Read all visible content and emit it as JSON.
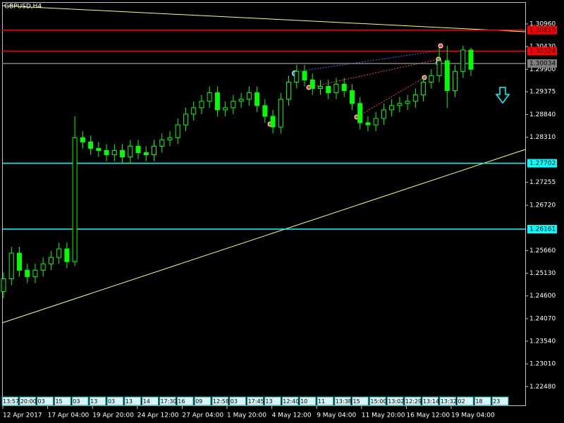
{
  "chart_data": {
    "type": "candlestick",
    "title": "GBPUSD,H4",
    "color": "#00ff00",
    "open": [
      1.247,
      1.25,
      1.256,
      1.252,
      1.2505,
      1.252,
      1.2535,
      1.255,
      1.257,
      1.254,
      1.283,
      1.282,
      1.2805,
      1.28,
      1.279,
      1.28,
      1.2785,
      1.281,
      1.2795,
      1.279,
      1.281,
      1.2825,
      1.283,
      1.286,
      1.2885,
      1.29,
      1.2915,
      1.2935,
      1.2895,
      1.29,
      1.2915,
      1.292,
      1.2935,
      1.2905,
      1.288,
      1.2855,
      1.292,
      1.296,
      1.2985,
      1.2965,
      1.2945,
      1.295,
      1.2935,
      1.2955,
      1.294,
      1.291,
      1.2865,
      1.286,
      1.2875,
      1.2895,
      1.2905,
      1.291,
      1.2915,
      1.293,
      1.296,
      1.2975,
      1.301,
      1.294,
      1.2985,
      1.3035
    ],
    "high": [
      1.2515,
      1.2575,
      1.2575,
      1.2535,
      1.2535,
      1.255,
      1.2565,
      1.2585,
      1.2585,
      1.288,
      1.2845,
      1.2835,
      1.282,
      1.2815,
      1.2815,
      1.2815,
      1.2825,
      1.2825,
      1.281,
      1.2825,
      1.284,
      1.2845,
      1.2875,
      1.29,
      1.2915,
      1.293,
      1.295,
      1.295,
      1.2915,
      1.293,
      1.2935,
      1.295,
      1.295,
      1.292,
      1.2895,
      1.2935,
      1.2975,
      1.3,
      1.3,
      1.298,
      1.2965,
      1.2965,
      1.297,
      1.297,
      1.2955,
      1.2925,
      1.288,
      1.289,
      1.291,
      1.292,
      1.2925,
      1.293,
      1.2945,
      1.2975,
      1.299,
      1.304,
      1.3045,
      1.3,
      1.3045,
      1.304
    ],
    "low": [
      1.2455,
      1.2485,
      1.2505,
      1.249,
      1.249,
      1.2505,
      1.252,
      1.2535,
      1.2525,
      1.253,
      1.2805,
      1.279,
      1.2785,
      1.2775,
      1.2775,
      1.277,
      1.277,
      1.278,
      1.2775,
      1.2775,
      1.2795,
      1.281,
      1.2815,
      1.2845,
      1.287,
      1.2885,
      1.29,
      1.288,
      1.288,
      1.2885,
      1.29,
      1.2905,
      1.289,
      1.2865,
      1.284,
      1.284,
      1.2905,
      1.2945,
      1.295,
      1.293,
      1.293,
      1.292,
      1.292,
      1.2925,
      1.2895,
      1.285,
      1.2845,
      1.2845,
      1.286,
      1.288,
      1.289,
      1.2895,
      1.29,
      1.2915,
      1.2945,
      1.296,
      1.29,
      1.2925,
      1.297,
      1.2975
    ],
    "close": [
      1.25,
      1.256,
      1.252,
      1.2505,
      1.252,
      1.2535,
      1.255,
      1.257,
      1.254,
      1.283,
      1.282,
      1.2805,
      1.28,
      1.279,
      1.28,
      1.2785,
      1.281,
      1.2795,
      1.279,
      1.281,
      1.2825,
      1.283,
      1.286,
      1.2885,
      1.29,
      1.2915,
      1.2935,
      1.2895,
      1.29,
      1.2915,
      1.292,
      1.2935,
      1.2905,
      1.288,
      1.2855,
      1.292,
      1.296,
      1.2985,
      1.2965,
      1.2945,
      1.295,
      1.2935,
      1.2955,
      1.294,
      1.291,
      1.2865,
      1.286,
      1.2875,
      1.2895,
      1.2905,
      1.291,
      1.2915,
      1.293,
      1.296,
      1.2975,
      1.301,
      1.294,
      1.2985,
      1.3035,
      1.299
    ],
    "categories": [
      "12 Apr 2017",
      "17 Apr 04:00",
      "19 Apr 20:00",
      "24 Apr 12:00",
      "27 Apr 04:00",
      "1 May 20:00",
      "4 May 12:00",
      "9 May 04:00",
      "11 May 20:00",
      "16 May 12:00",
      "19 May 04:00"
    ],
    "ylim": [
      1.2204,
      1.3152
    ],
    "yticks": [
      {
        "value": 1.3096,
        "label": "1.30960"
      },
      {
        "value": 1.3043,
        "label": "1.30430"
      },
      {
        "value": 1.299,
        "label": "1.29900"
      },
      {
        "value": 1.29375,
        "label": "1.29375"
      },
      {
        "value": 1.2884,
        "label": "1.28840"
      },
      {
        "value": 1.2831,
        "label": "1.28310"
      },
      {
        "value": 1.27255,
        "label": "1.27255"
      },
      {
        "value": 1.2672,
        "label": "1.26720"
      },
      {
        "value": 1.2566,
        "label": "1.25660"
      },
      {
        "value": 1.2513,
        "label": "1.25130"
      },
      {
        "value": 1.246,
        "label": "1.24600"
      },
      {
        "value": 1.2407,
        "label": "1.24070"
      },
      {
        "value": 1.2354,
        "label": "1.23540"
      },
      {
        "value": 1.2301,
        "label": "1.23010"
      },
      {
        "value": 1.2248,
        "label": "1.22480"
      }
    ],
    "levels": [
      {
        "price": 1.30815,
        "color": "#ff0000"
      },
      {
        "price": 1.30324,
        "color": "#ff0000"
      },
      {
        "price": 1.30034,
        "color": "#808080"
      },
      {
        "price": 1.27702,
        "color": "#00ffff"
      },
      {
        "price": 1.26161,
        "color": "#00ffff"
      }
    ],
    "trade_tags": [
      "13:57",
      "20:00",
      "03",
      "15",
      "03",
      "13",
      "03",
      "13",
      "14",
      "17:30",
      "16",
      "09",
      "12:58",
      "03",
      "17:45",
      "13",
      "12:40",
      "10",
      "11",
      "13:38",
      "15",
      "15:00",
      "13:02",
      "12:29",
      "13:14",
      "13:32",
      "02",
      "18",
      "23"
    ]
  }
}
